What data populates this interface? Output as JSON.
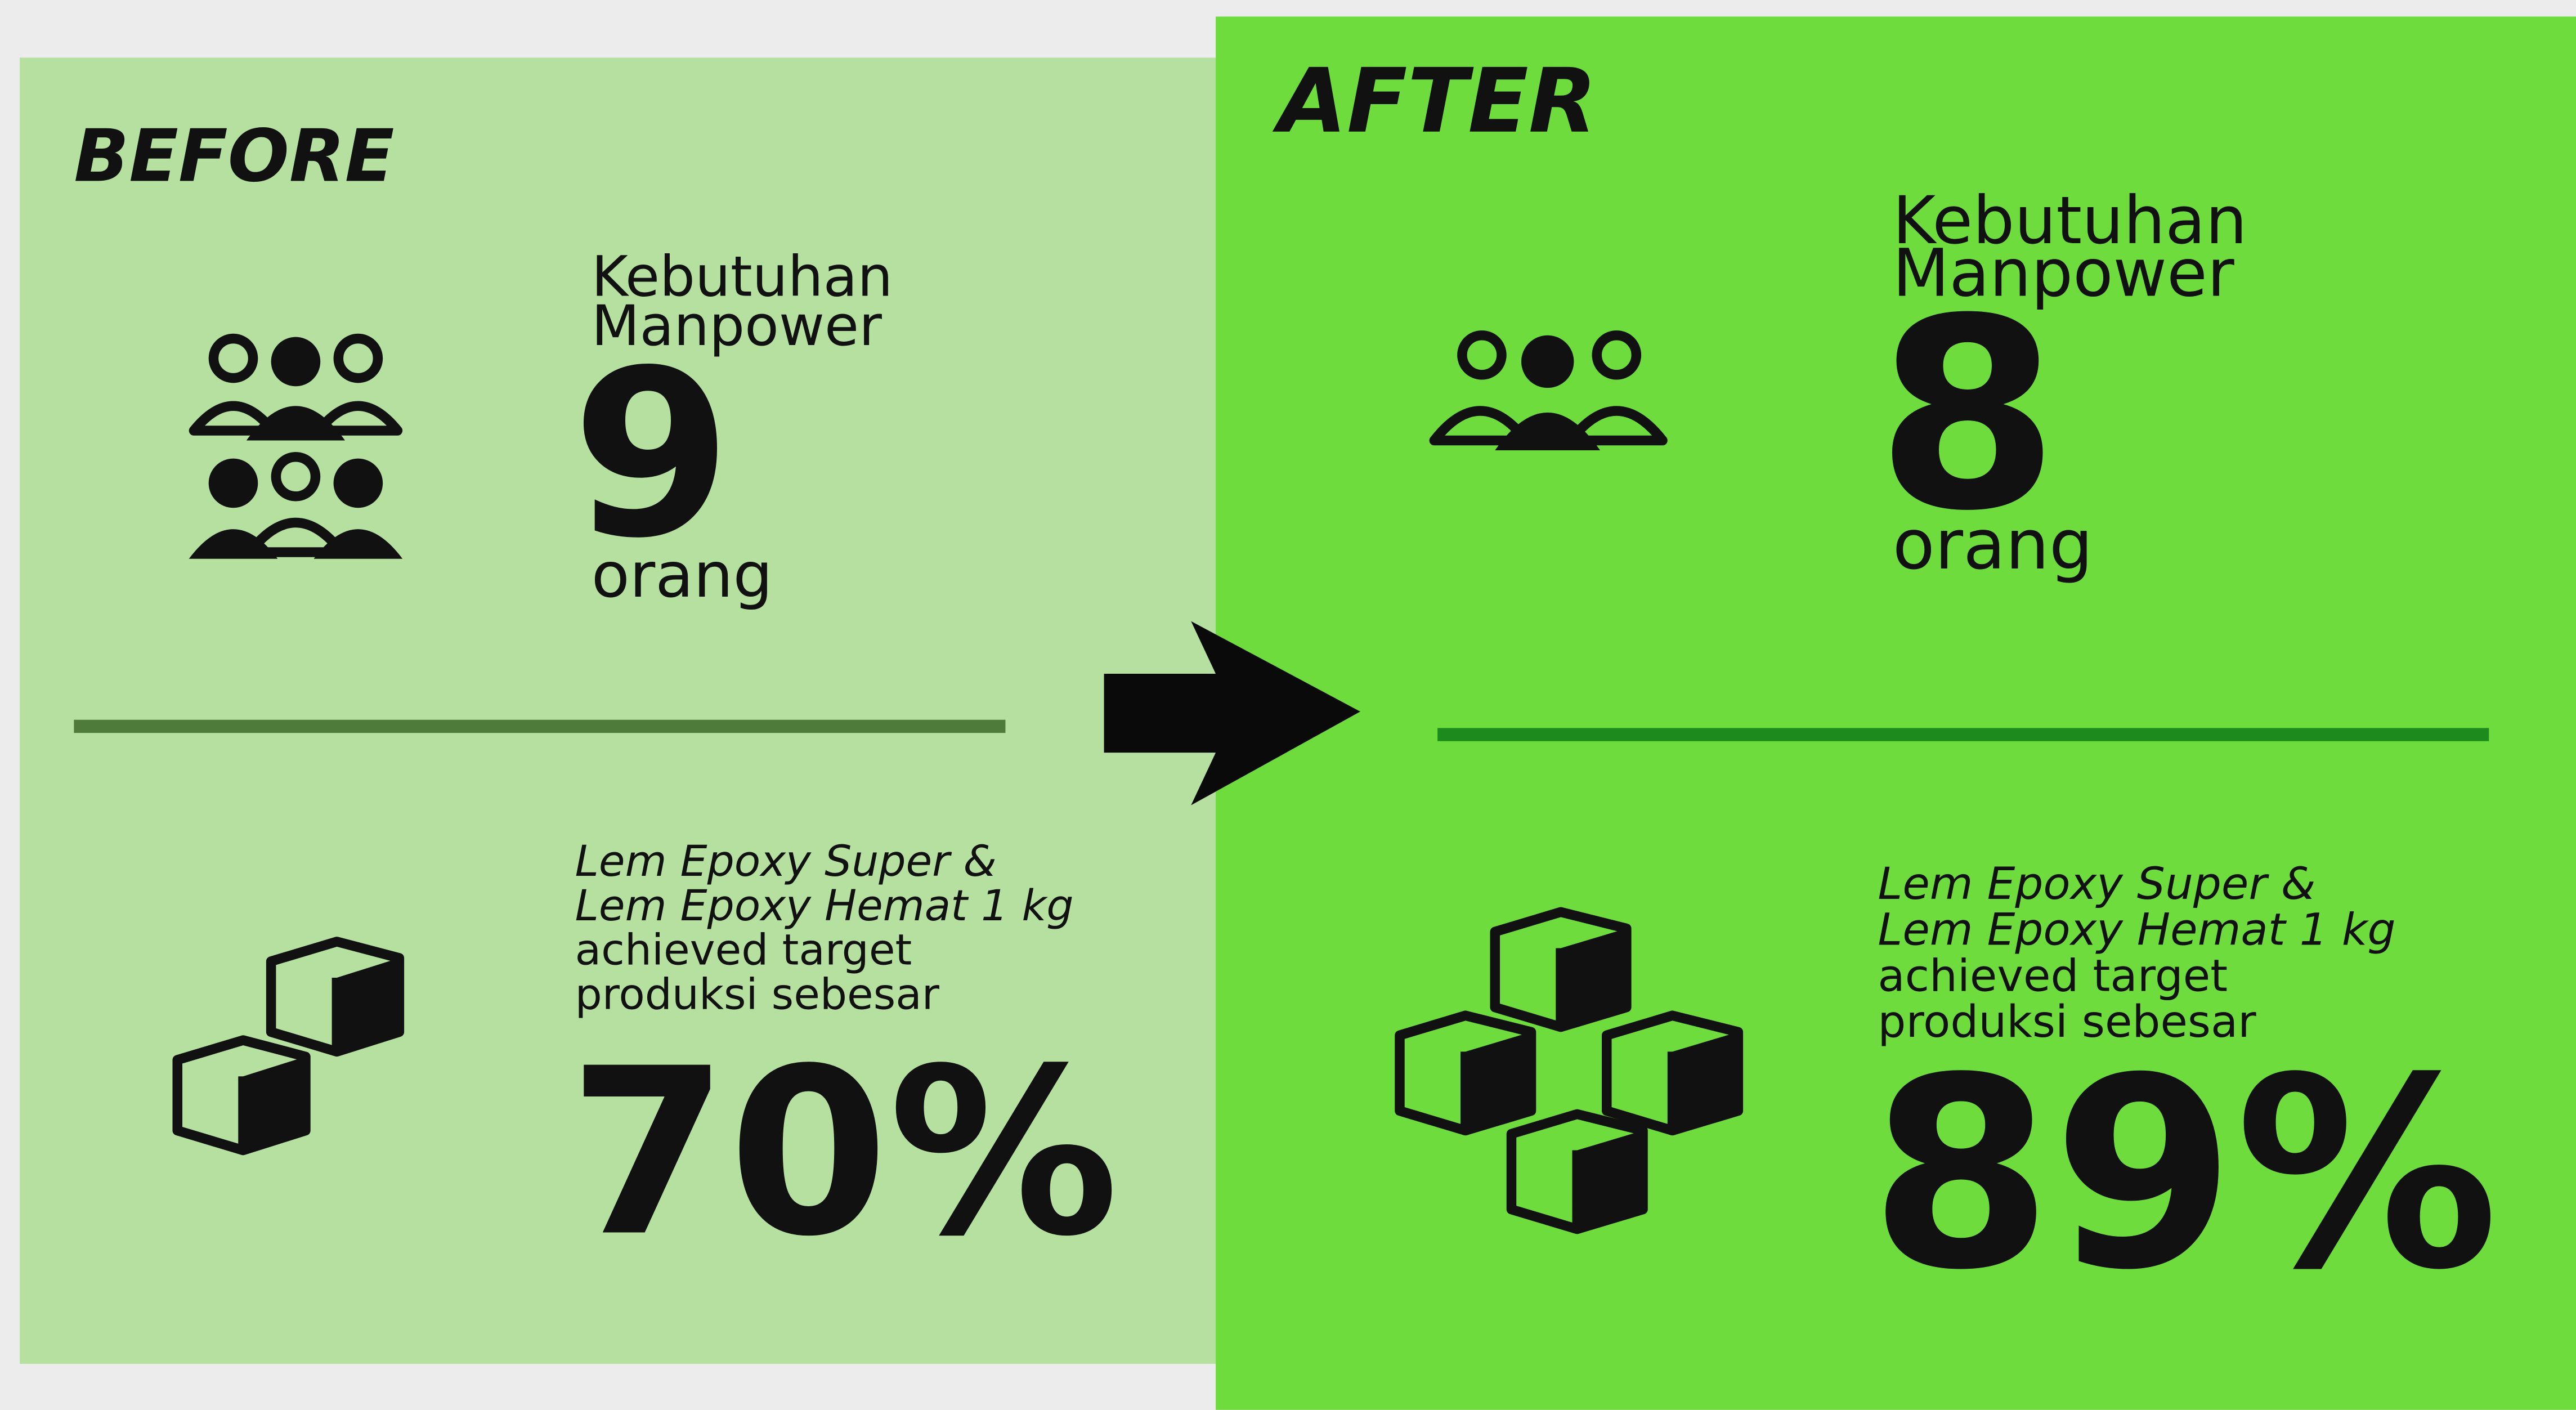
{
  "before": {
    "title": "BEFORE",
    "manpower_label": [
      "Kebutuhan",
      "Manpower"
    ],
    "manpower_value": "9",
    "manpower_unit": "orang",
    "description": [
      "Lem Epoxy Super &",
      "Lem Epoxy Hemat 1 kg",
      "achieved target",
      "produksi sebesar"
    ],
    "percent": "70%"
  },
  "after": {
    "title": "AFTER",
    "manpower_label": [
      "Kebutuhan",
      "Manpower"
    ],
    "manpower_value": "8",
    "manpower_unit": "orang",
    "description": [
      "Lem Epoxy Super &",
      "Lem Epoxy Hemat 1 kg",
      "achieved target",
      "produksi sebesar"
    ],
    "percent": "89%"
  }
}
